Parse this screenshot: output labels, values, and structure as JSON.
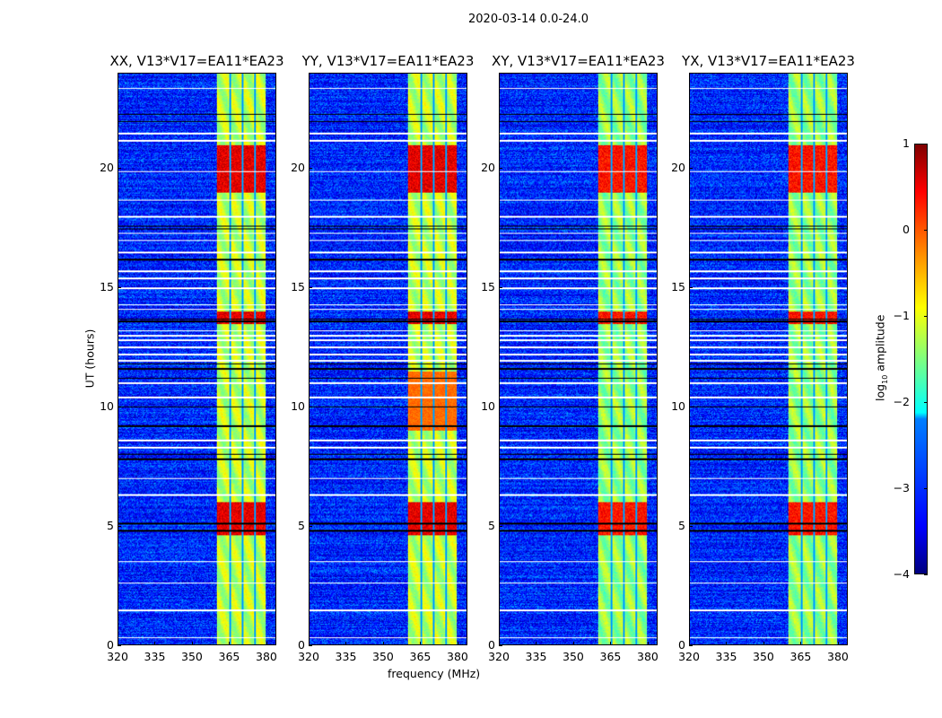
{
  "chart_data": {
    "type": "heatmap",
    "title": "2020-03-14 0.0-24.0",
    "xlabel": "frequency (MHz)",
    "ylabel": "UT (hours)",
    "xlim": [
      320,
      384
    ],
    "ylim": [
      0,
      24
    ],
    "xticks": [
      "320",
      "335",
      "350",
      "365",
      "380"
    ],
    "yticks": [
      "0",
      "5",
      "10",
      "15",
      "20"
    ],
    "panels": [
      {
        "title": "XX, V13*V17=EA11*EA23"
      },
      {
        "title": "YY, V13*V17=EA11*EA23"
      },
      {
        "title": "XY, V13*V17=EA11*EA23"
      },
      {
        "title": "YX, V13*V17=EA11*EA23"
      }
    ],
    "colorbar": {
      "label_prefix": "log",
      "label_sub": "10",
      "label_suffix": " amplitude",
      "colormap": "jet",
      "range": [
        -4,
        1
      ],
      "ticks": [
        "1",
        "0",
        "−1",
        "−2",
        "−3",
        "−4"
      ]
    },
    "background_log_amplitude": -3.2,
    "rfi_band_mhz": [
      360,
      380
    ],
    "rfi_band_log_amplitude": -1.2,
    "rfi_subband_gaps_mhz": [
      365.5,
      370.5,
      375.5
    ],
    "strong_rfi_hours": [
      [
        4.6,
        6.0
      ],
      [
        13.5,
        14.0
      ],
      [
        19.0,
        21.0
      ]
    ],
    "flagged_hours_white": [
      0.3,
      1.45,
      2.6,
      3.5,
      6.3,
      7.0,
      8.3,
      8.6,
      10.4,
      11.0,
      11.95,
      12.2,
      12.5,
      12.8,
      13.0,
      13.2,
      14.1,
      14.3,
      15.0,
      15.4,
      15.7,
      16.5,
      17.0,
      17.3,
      18.0,
      18.7,
      19.9,
      21.2,
      21.5,
      23.4
    ],
    "flagged_hours_black": [
      4.8,
      5.1,
      7.8,
      8.0,
      9.2,
      10.0,
      11.2,
      11.6,
      11.8,
      13.6,
      13.7,
      16.2,
      17.5,
      17.6,
      22.0,
      22.3
    ]
  }
}
